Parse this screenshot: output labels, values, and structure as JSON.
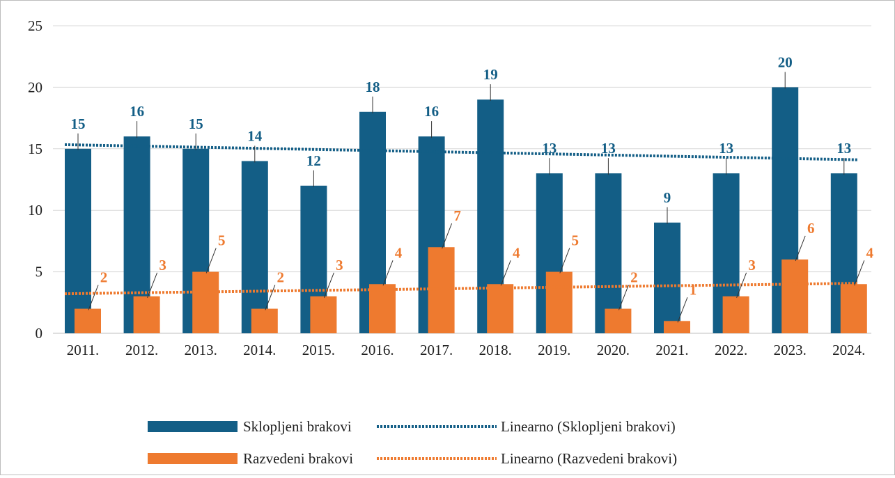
{
  "chart_data": {
    "type": "bar",
    "title": "",
    "xlabel": "",
    "ylabel": "",
    "ylim": [
      0,
      25
    ],
    "yticks": [
      "0",
      "5",
      "10",
      "15",
      "20",
      "25"
    ],
    "grid": true,
    "legend_position": "bottom",
    "categories": [
      "2011.",
      "2012.",
      "2013.",
      "2014.",
      "2015.",
      "2016.",
      "2017.",
      "2018.",
      "2019.",
      "2020.",
      "2021.",
      "2022.",
      "2023.",
      "2024."
    ],
    "series": [
      {
        "name": "Sklopljeni brakovi",
        "color": "#135e86",
        "values": [
          15,
          16,
          15,
          14,
          12,
          18,
          16,
          19,
          13,
          13,
          9,
          13,
          20,
          13
        ]
      },
      {
        "name": "Razvedeni brakovi",
        "color": "#ee7a2f",
        "values": [
          2,
          3,
          5,
          2,
          3,
          4,
          7,
          4,
          5,
          2,
          1,
          3,
          6,
          4
        ]
      }
    ],
    "trendlines": [
      {
        "name": "Linearno (Sklopljeni brakovi)",
        "of_series": 0,
        "type": "linear",
        "color": "#135e86"
      },
      {
        "name": "Linearno (Razvedeni brakovi)",
        "of_series": 1,
        "type": "linear",
        "color": "#ee7a2f"
      }
    ]
  }
}
